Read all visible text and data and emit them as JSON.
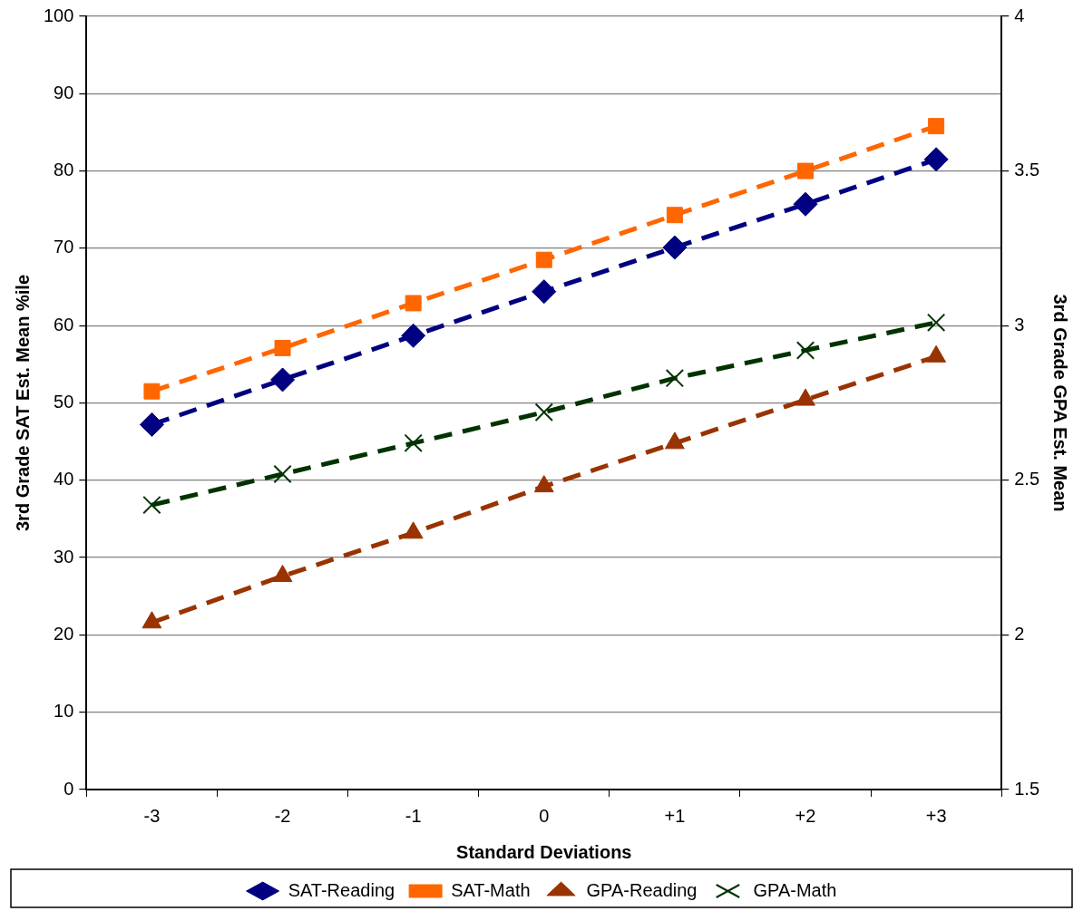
{
  "chart_data": {
    "type": "line",
    "xlabel": "Standard Deviations",
    "ylabel": "3rd Grade SAT Est. Mean %ile",
    "y2label": "3rd Grade GPA Est. Mean",
    "categories": [
      "-3",
      "-2",
      "-1",
      "0",
      "+1",
      "+2",
      "+3"
    ],
    "series": [
      {
        "name": "SAT-Reading",
        "color": "#000080",
        "marker": "diamond",
        "values": [
          47.2,
          53.0,
          58.7,
          64.4,
          70.1,
          75.7,
          81.5
        ]
      },
      {
        "name": "SAT-Math",
        "color": "#ff6600",
        "marker": "square",
        "values": [
          51.5,
          57.1,
          62.9,
          68.5,
          74.3,
          80.0,
          85.8
        ]
      },
      {
        "name": "GPA-Reading",
        "color": "#993300",
        "marker": "triangle",
        "axis": "y2",
        "values": [
          2.04,
          2.19,
          2.33,
          2.48,
          2.62,
          2.76,
          2.9
        ]
      },
      {
        "name": "GPA-Math",
        "color": "#003300",
        "marker": "cross",
        "axis": "y2",
        "values": [
          2.42,
          2.52,
          2.62,
          2.72,
          2.83,
          2.92,
          3.01
        ]
      }
    ],
    "ylim": [
      0,
      100
    ],
    "yticks": [
      0,
      10,
      20,
      30,
      40,
      50,
      60,
      70,
      80,
      90,
      100
    ],
    "y2lim": [
      1.5,
      4
    ],
    "y2ticks": [
      1.5,
      2,
      2.5,
      3,
      3.5,
      4
    ],
    "grid": "y",
    "legend": "bottom",
    "line_style": "dashed"
  }
}
